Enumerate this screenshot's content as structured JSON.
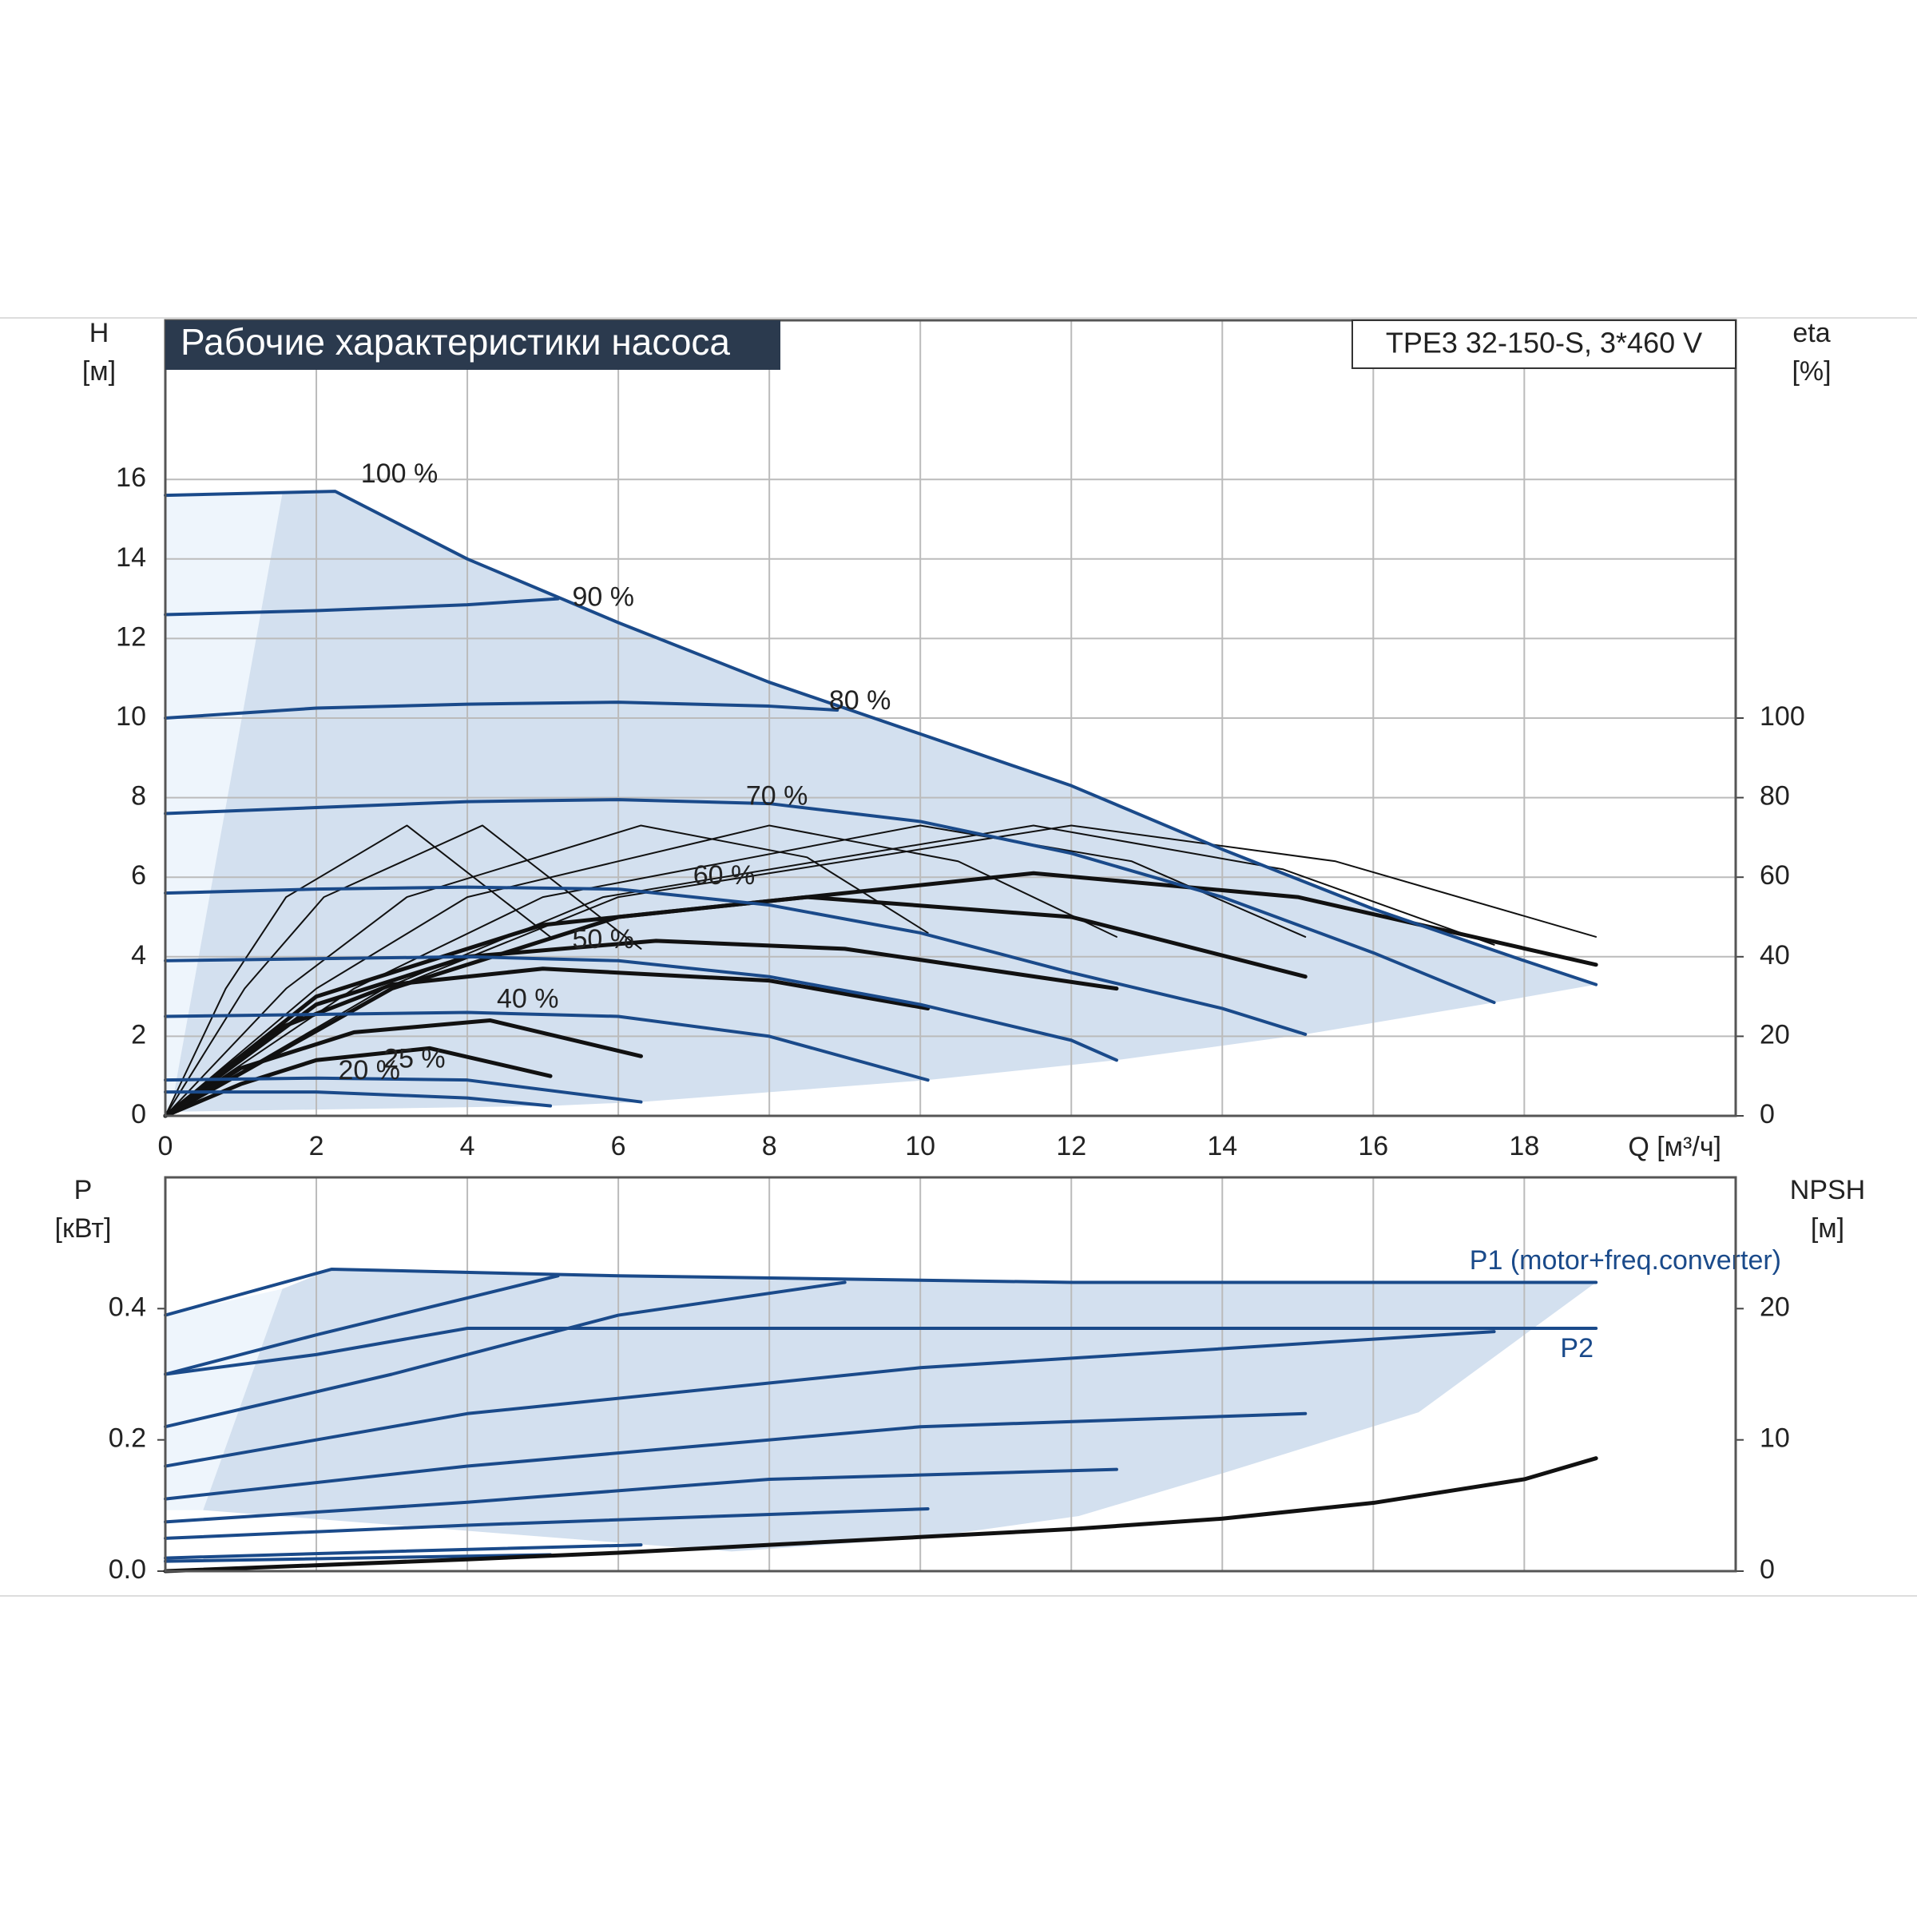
{
  "chart_data": [
    {
      "type": "line",
      "title": "Рабочие характеристики насоса",
      "model": "TPE3 32-150-S, 3*460 V",
      "y_label": "H",
      "y_unit": "[м]",
      "y2_label": "eta",
      "y2_unit": "[%]",
      "x_label": "Q [м³/ч]",
      "xlim": [
        0,
        20.8
      ],
      "xticks": [
        0,
        2,
        4,
        6,
        8,
        10,
        12,
        14,
        16,
        18
      ],
      "ylim": [
        0,
        20
      ],
      "yticks": [
        0,
        2,
        4,
        6,
        8,
        10,
        12,
        14,
        16
      ],
      "y2lim": [
        0,
        200
      ],
      "y2ticks": [
        0,
        20,
        40,
        60,
        80,
        100
      ],
      "grid": true,
      "operating_area": {
        "color": "#d3e0ef",
        "x": [
          0.08,
          1.55,
          2.25,
          4,
          6,
          8,
          10,
          12,
          14,
          16,
          18,
          18.95,
          17.6,
          15.1,
          12.6,
          10.1,
          6.3,
          5.1,
          0
        ],
        "y": [
          0.2,
          15.65,
          15.7,
          14.0,
          12.4,
          10.9,
          9.6,
          8.3,
          6.7,
          5.2,
          3.9,
          3.3,
          2.85,
          2.05,
          1.4,
          0.9,
          0.35,
          0.25,
          0.1
        ]
      },
      "light_area": {
        "color": "#eef5fc",
        "x": [
          0,
          1.55,
          0.08,
          0
        ],
        "y": [
          15.6,
          15.65,
          0.2,
          0
        ]
      },
      "series": [
        {
          "name": "100 %",
          "color": "#1a4a8a",
          "x": [
            0,
            2.25,
            4,
            6,
            8,
            10,
            12,
            14,
            16,
            18,
            18.95
          ],
          "values": [
            15.6,
            15.7,
            14.0,
            12.4,
            10.9,
            9.6,
            8.3,
            6.7,
            5.2,
            3.9,
            3.3
          ]
        },
        {
          "name": "90 %",
          "color": "#1a4a8a",
          "x": [
            0,
            2,
            4,
            5.2
          ],
          "values": [
            12.6,
            12.7,
            12.85,
            13.0
          ]
        },
        {
          "name": "80 %",
          "color": "#1a4a8a",
          "x": [
            0,
            2,
            4,
            6,
            8,
            8.9
          ],
          "values": [
            10.0,
            10.25,
            10.35,
            10.4,
            10.3,
            10.2
          ]
        },
        {
          "name": "70 %",
          "color": "#1a4a8a",
          "x": [
            0,
            2,
            4,
            6,
            8,
            10,
            12,
            14,
            16,
            17.6
          ],
          "values": [
            7.6,
            7.75,
            7.9,
            7.95,
            7.85,
            7.4,
            6.6,
            5.5,
            4.1,
            2.85
          ]
        },
        {
          "name": "60 %",
          "color": "#1a4a8a",
          "x": [
            0,
            2,
            4,
            6,
            8,
            10,
            12,
            14,
            15.1
          ],
          "values": [
            5.6,
            5.7,
            5.75,
            5.7,
            5.3,
            4.6,
            3.6,
            2.7,
            2.05
          ]
        },
        {
          "name": "50 %",
          "color": "#1a4a8a",
          "x": [
            0,
            2,
            4,
            6,
            8,
            10,
            12,
            12.6
          ],
          "values": [
            3.9,
            3.95,
            4.0,
            3.9,
            3.5,
            2.8,
            1.9,
            1.4
          ]
        },
        {
          "name": "40 %",
          "color": "#1a4a8a",
          "x": [
            0,
            2,
            4,
            6,
            8,
            10.1
          ],
          "values": [
            2.5,
            2.55,
            2.6,
            2.5,
            2.0,
            0.9
          ]
        },
        {
          "name": "25 %",
          "color": "#1a4a8a",
          "x": [
            0,
            2,
            4,
            6.3
          ],
          "values": [
            0.9,
            0.95,
            0.9,
            0.35
          ]
        },
        {
          "name": "20 %",
          "color": "#1a4a8a",
          "x": [
            0,
            2,
            4,
            5.1
          ],
          "values": [
            0.6,
            0.6,
            0.45,
            0.25
          ]
        }
      ],
      "eta_series": [
        {
          "axis": "y2",
          "color": "#111111",
          "thick": false,
          "x": [
            0,
            0.8,
            1.6,
            3.2,
            5.1
          ],
          "values": [
            0,
            32,
            55,
            73,
            45
          ]
        },
        {
          "axis": "y2",
          "color": "#111111",
          "thick": false,
          "x": [
            0,
            1.05,
            2.1,
            4.2,
            6.3
          ],
          "values": [
            0,
            32,
            55,
            73,
            42
          ]
        },
        {
          "axis": "y2",
          "color": "#111111",
          "thick": false,
          "x": [
            0,
            1.6,
            3.2,
            6.3,
            8.5,
            10.1
          ],
          "values": [
            0,
            32,
            55,
            73,
            65,
            46
          ]
        },
        {
          "axis": "y2",
          "color": "#111111",
          "thick": false,
          "x": [
            0,
            2,
            4,
            8,
            10.5,
            12.6
          ],
          "values": [
            0,
            32,
            55,
            73,
            64,
            45
          ]
        },
        {
          "axis": "y2",
          "color": "#111111",
          "thick": false,
          "x": [
            0,
            2.5,
            5,
            10,
            12.8,
            15.1
          ],
          "values": [
            0,
            32,
            55,
            73,
            64,
            45
          ]
        },
        {
          "axis": "y2",
          "color": "#111111",
          "thick": false,
          "x": [
            0,
            2.9,
            5.8,
            11.5,
            14.8,
            17.6
          ],
          "values": [
            0,
            32,
            55,
            73,
            62,
            43
          ]
        },
        {
          "axis": "y2",
          "color": "#111111",
          "thick": false,
          "x": [
            0,
            3,
            6,
            12,
            15.5,
            18.95
          ],
          "values": [
            0,
            32,
            55,
            73,
            64,
            45
          ]
        },
        {
          "axis": "y2",
          "color": "#111111",
          "thick": true,
          "x": [
            0,
            3,
            6,
            11.5,
            15,
            18.95
          ],
          "values": [
            0,
            32,
            50,
            61,
            55,
            38
          ]
        },
        {
          "axis": "y2",
          "color": "#111111",
          "thick": true,
          "x": [
            0,
            2,
            5,
            8.5,
            12,
            15.1
          ],
          "values": [
            0,
            30,
            48,
            55,
            50,
            35
          ]
        },
        {
          "axis": "y2",
          "color": "#111111",
          "thick": true,
          "x": [
            0,
            2,
            4,
            6.5,
            9,
            12.6
          ],
          "values": [
            0,
            28,
            40,
            44,
            42,
            32
          ]
        },
        {
          "axis": "y2",
          "color": "#111111",
          "thick": true,
          "x": [
            0,
            1.5,
            3,
            5,
            8,
            10.1
          ],
          "values": [
            0,
            22,
            33,
            37,
            34,
            27
          ]
        },
        {
          "axis": "y2",
          "color": "#111111",
          "thick": true,
          "x": [
            0,
            1,
            2.5,
            4.3,
            6.3
          ],
          "values": [
            0,
            12,
            21,
            24,
            15
          ]
        },
        {
          "axis": "y2",
          "color": "#111111",
          "thick": true,
          "x": [
            0,
            1,
            2,
            3.5,
            5.1
          ],
          "values": [
            0,
            8,
            14,
            17,
            10
          ]
        }
      ]
    },
    {
      "type": "line",
      "y_label": "P",
      "y_unit": "[кВт]",
      "y2_label": "NPSH",
      "y2_unit": "[м]",
      "xlim": [
        0,
        20.8
      ],
      "ylim": [
        0,
        0.6
      ],
      "yticks": [
        {
          "value": 0,
          "label": "0.0"
        },
        0.2,
        0.4
      ],
      "y2lim": [
        0,
        30
      ],
      "y2ticks": [
        0,
        10,
        20
      ],
      "operating_area": {
        "color": "#d3e0ef",
        "x": [
          1.55,
          2.2,
          6,
          12,
          18.95,
          16.6,
          14,
          12.1,
          10,
          7.5,
          0.5
        ],
        "y": [
          0.43,
          0.46,
          0.45,
          0.44,
          0.44,
          0.242,
          0.149,
          0.084,
          0.05,
          0.03,
          0.093
        ]
      },
      "light_area": {
        "color": "#eef5fc",
        "x": [
          0,
          1.55,
          0.5,
          0
        ],
        "y": [
          0.39,
          0.43,
          0.093,
          0.093
        ]
      },
      "series": [
        {
          "name": "P1 (motor+freq.converter)",
          "color": "#1a4a8a",
          "x": [
            0,
            2.2,
            6,
            12,
            18.95
          ],
          "values": [
            0.39,
            0.46,
            0.45,
            0.44,
            0.44
          ]
        },
        {
          "name": "P2",
          "color": "#1a4a8a",
          "x": [
            0,
            2,
            4,
            12,
            18.95
          ],
          "values": [
            0.3,
            0.33,
            0.37,
            0.37,
            0.37
          ]
        }
      ],
      "p_series": [
        {
          "color": "#1a4a8a",
          "x": [
            0,
            2,
            5.2
          ],
          "values": [
            0.3,
            0.36,
            0.45
          ]
        },
        {
          "color": "#1a4a8a",
          "x": [
            0,
            3,
            6,
            9
          ],
          "values": [
            0.22,
            0.3,
            0.39,
            0.44
          ]
        },
        {
          "color": "#1a4a8a",
          "x": [
            0,
            4,
            10,
            17.6
          ],
          "values": [
            0.16,
            0.24,
            0.31,
            0.365
          ]
        },
        {
          "color": "#1a4a8a",
          "x": [
            0,
            4,
            10,
            15.1
          ],
          "values": [
            0.11,
            0.16,
            0.22,
            0.24
          ]
        },
        {
          "color": "#1a4a8a",
          "x": [
            0,
            4,
            8,
            12.6
          ],
          "values": [
            0.075,
            0.105,
            0.14,
            0.155
          ]
        },
        {
          "color": "#1a4a8a",
          "x": [
            0,
            4,
            10.1
          ],
          "values": [
            0.05,
            0.07,
            0.095
          ]
        },
        {
          "color": "#1a4a8a",
          "x": [
            0,
            3,
            6.3
          ],
          "values": [
            0.02,
            0.03,
            0.04
          ]
        },
        {
          "color": "#1a4a8a",
          "x": [
            0,
            5.1
          ],
          "values": [
            0.015,
            0.025
          ]
        }
      ],
      "npsh": {
        "axis": "y2",
        "color": "#111111",
        "x": [
          0,
          4,
          6,
          8,
          10,
          12,
          14,
          16,
          18,
          18.95
        ],
        "values": [
          0,
          0.9,
          1.4,
          2.0,
          2.6,
          3.2,
          4.0,
          5.2,
          7.0,
          8.6
        ]
      }
    }
  ]
}
